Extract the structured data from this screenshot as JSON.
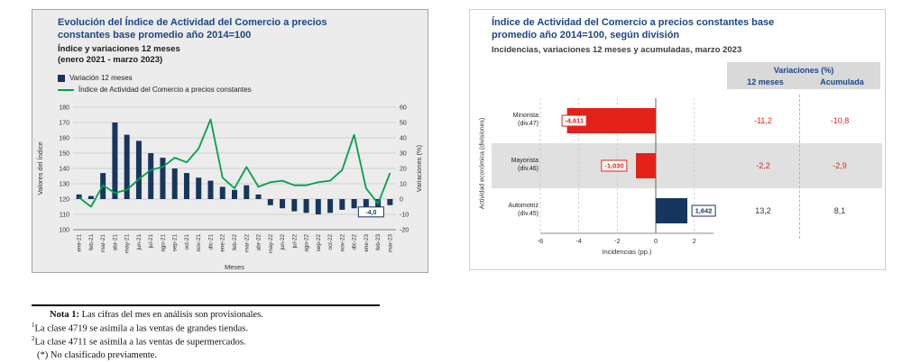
{
  "colors": {
    "title_blue": "#1c4587",
    "navy": "#17365d",
    "green": "#00a14e",
    "red": "#e32219",
    "panel_gray": "#ececec",
    "header_band_gray": "#d9d9d9",
    "row_band_gray": "#e0e0e0"
  },
  "chart_data": [
    {
      "type": "combo",
      "title": "Evolución del Índice de Actividad del Comercio a precios constantes base promedio año 2014=100",
      "subtitle": "Índice y variaciones 12 meses",
      "period": "(enero 2021 - marzo 2023)",
      "xlabel": "Meses",
      "ylabel_left": "Valores del Índice",
      "ylabel_right": "Variaciones (%)",
      "ylim_left": [
        100,
        180
      ],
      "ylim_right": [
        -20,
        60
      ],
      "ytick_step": 10,
      "grid": true,
      "legend_position": "top-left",
      "categories": [
        "ene-21",
        "feb-21",
        "mar-21",
        "abr-21",
        "may-21",
        "jun-21",
        "jul-21",
        "ago-21",
        "sep-21",
        "oct-21",
        "nov-21",
        "dic-21",
        "ene-22",
        "feb-22",
        "mar-22",
        "abr-22",
        "may-22",
        "jun-22",
        "jul-22",
        "ago-22",
        "sep-22",
        "oct-22",
        "nov-22",
        "dic-22",
        "ene-23",
        "feb-23",
        "mar-23"
      ],
      "series": [
        {
          "name": "Variación 12 meses",
          "type": "bar",
          "axis": "right",
          "color": "#17365d",
          "values": [
            3,
            2,
            17,
            50,
            42,
            38,
            30,
            27,
            20,
            17,
            14,
            12,
            8,
            6,
            9,
            3,
            -4,
            -6,
            -8,
            -9,
            -10,
            -9,
            -7,
            -6,
            -6,
            -8,
            -4
          ]
        },
        {
          "name": "Índice de Actividad del Comercio a precios constantes",
          "type": "line",
          "axis": "left",
          "color": "#00a14e",
          "values": [
            121,
            115,
            129,
            124,
            126,
            133,
            139,
            141,
            147,
            144,
            153,
            172,
            134,
            127,
            141,
            128,
            131,
            132,
            129,
            129,
            131,
            132,
            139,
            162,
            127,
            117,
            137
          ]
        }
      ],
      "annotation": {
        "category": "mar-23",
        "value": -4,
        "label": "-4,0"
      }
    },
    {
      "type": "bar",
      "orientation": "horizontal",
      "title": "Índice de Actividad del Comercio a precios constantes base promedio año 2014=100, según división",
      "subtitle": "Incidencias, variaciones 12 meses y acumuladas, marzo 2023",
      "xlabel": "Incidencias (pp.)",
      "ylabel": "Actividad económica (divisiones)",
      "xlim": [
        -6,
        3
      ],
      "xticks": [
        -6,
        -4,
        -2,
        0,
        2
      ],
      "categories": [
        {
          "label": "Minorista",
          "division": "(div.47)"
        },
        {
          "label": "Mayorista",
          "division": "(div.46)"
        },
        {
          "label": "Automotriz",
          "division": "(div.45)"
        }
      ],
      "values": [
        -4.611,
        -1.03,
        1.642
      ],
      "value_labels": [
        "-4,611",
        "-1,030",
        "1,642"
      ],
      "bar_colors": [
        "#e32219",
        "#e32219",
        "#17365d"
      ],
      "label_dx": [
        8,
        -24,
        18
      ],
      "shaded_row": 1,
      "table": {
        "header": "Variaciones (%)",
        "columns": [
          "12 meses",
          "Acumulada"
        ],
        "rows": [
          {
            "values": [
              "-11,2",
              "-10,8"
            ],
            "negative": true
          },
          {
            "values": [
              "-2,2",
              "-2,9"
            ],
            "negative": true
          },
          {
            "values": [
              "13,2",
              "8,1"
            ],
            "negative": false
          }
        ]
      }
    }
  ],
  "notes": {
    "nota1_label": "Nota 1:",
    "nota1_text": "Las cifras del mes en análisis son provisionales.",
    "note2_sup": "1",
    "note2_text": "La clase 4719 se asimila a las ventas de grandes tiendas.",
    "note3_sup": "2",
    "note3_text": "La clase 4711 se asimila a las ventas de supermercados.",
    "note4_text": "(*) No clasificado previamente."
  }
}
